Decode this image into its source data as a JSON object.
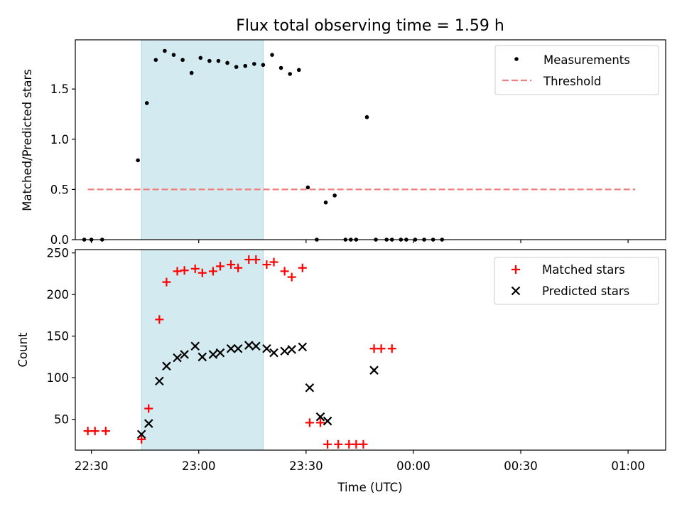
{
  "title": "Flux total observing time = 1.59 h",
  "xlabel": "Time (UTC)",
  "x_ticks": [
    "22:30",
    "23:00",
    "23:30",
    "00:00",
    "00:30",
    "01:00"
  ],
  "x_tick_minutes": [
    0,
    30,
    60,
    90,
    120,
    150
  ],
  "x_domain_minutes": [
    -4.5,
    160.5
  ],
  "colors": {
    "shade": "#d3eaf0",
    "shade_edge": "#a9d6e0",
    "threshold": "#f08080",
    "matched": "#ff0000",
    "predicted": "#000000",
    "measure": "#000000"
  },
  "chart_data": [
    {
      "type": "scatter",
      "ylabel": "Matched/Predicted stars",
      "ylim": [
        0,
        1.99
      ],
      "y_ticks": [
        "0.0",
        "0.5",
        "1.0",
        "1.5"
      ],
      "y_tick_values": [
        0,
        0.5,
        1.0,
        1.5
      ],
      "grid": false,
      "legend": "top-right",
      "shaded_interval": [
        "22:44",
        "23:18"
      ],
      "series": [
        {
          "name": "Measurements",
          "marker": "dot",
          "x": [
            "22:29",
            "22:31",
            "22:34",
            "22:44",
            "22:46",
            "22:49",
            "22:51",
            "22:54",
            "22:56",
            "22:59",
            "23:01",
            "23:04",
            "23:06",
            "23:09",
            "23:11",
            "23:14",
            "23:16",
            "23:19",
            "23:21",
            "23:24",
            "23:26",
            "23:29",
            "23:31",
            "23:34",
            "23:36",
            "23:39",
            "23:42",
            "23:44",
            "23:46",
            "23:49",
            "23:51",
            "23:54",
            "23:56",
            "23:59",
            "00:01",
            "00:04",
            "00:06",
            "00:09",
            "00:11"
          ],
          "y": [
            0,
            0,
            0,
            0.79,
            1.36,
            1.79,
            1.88,
            1.84,
            1.79,
            1.66,
            1.81,
            1.78,
            1.78,
            1.76,
            1.72,
            1.73,
            1.75,
            1.74,
            1.84,
            1.71,
            1.65,
            1.69,
            0.52,
            0,
            0.37,
            0.44,
            0,
            0,
            0,
            1.22,
            0,
            0,
            0,
            0,
            0,
            0,
            0,
            0,
            0
          ],
          "x_minutes": [
            -2,
            0,
            3,
            13,
            15.5,
            18,
            20.5,
            23,
            25.5,
            28,
            30.5,
            33,
            35.5,
            38,
            40.5,
            43,
            45.5,
            48,
            50.5,
            53,
            55.5,
            58,
            60.5,
            63,
            65.5,
            68,
            71,
            72.5,
            74,
            77,
            79.5,
            82.5,
            84,
            86.5,
            88,
            90.5,
            93,
            95.5,
            98
          ]
        },
        {
          "name": "Threshold",
          "marker": "dashed-line",
          "x": [
            "22:29",
            "01:02"
          ],
          "y": [
            0.5,
            0.5
          ]
        }
      ]
    },
    {
      "type": "scatter",
      "ylabel": "Count",
      "ylim": [
        13,
        254
      ],
      "y_ticks": [
        "50",
        "100",
        "150",
        "200",
        "250"
      ],
      "y_tick_values": [
        50,
        100,
        150,
        200,
        250
      ],
      "grid": false,
      "legend": "top-right",
      "shaded_interval": [
        "22:44",
        "23:18"
      ],
      "series": [
        {
          "name": "Matched stars",
          "marker": "plus",
          "x": [
            "22:29",
            "22:31",
            "22:34",
            "22:44",
            "22:46",
            "22:49",
            "22:51",
            "22:54",
            "22:56",
            "22:59",
            "23:01",
            "23:04",
            "23:06",
            "23:09",
            "23:11",
            "23:14",
            "23:16",
            "23:19",
            "23:21",
            "23:24",
            "23:26",
            "23:29",
            "23:31",
            "23:34",
            "23:36",
            "23:39",
            "23:42",
            "23:44",
            "23:46",
            "23:49",
            "23:51",
            "23:54"
          ],
          "y": [
            36,
            36,
            36,
            26,
            63,
            170,
            215,
            228,
            229,
            231,
            226,
            228,
            234,
            236,
            232,
            242,
            242,
            236,
            239,
            228,
            221,
            232,
            46,
            46,
            20,
            20,
            20,
            20,
            20,
            135,
            135,
            135
          ]
        },
        {
          "name": "Predicted stars",
          "marker": "x",
          "x": [
            "22:44",
            "22:46",
            "22:49",
            "22:51",
            "22:54",
            "22:56",
            "22:59",
            "23:01",
            "23:04",
            "23:06",
            "23:09",
            "23:11",
            "23:14",
            "23:16",
            "23:19",
            "23:21",
            "23:24",
            "23:26",
            "23:29",
            "23:31",
            "23:34",
            "23:36",
            "23:49"
          ],
          "y": [
            32,
            45,
            96,
            114,
            124,
            128,
            138,
            125,
            128,
            130,
            135,
            135,
            139,
            138,
            135,
            130,
            132,
            134,
            137,
            88,
            53,
            48,
            109
          ]
        }
      ]
    }
  ]
}
